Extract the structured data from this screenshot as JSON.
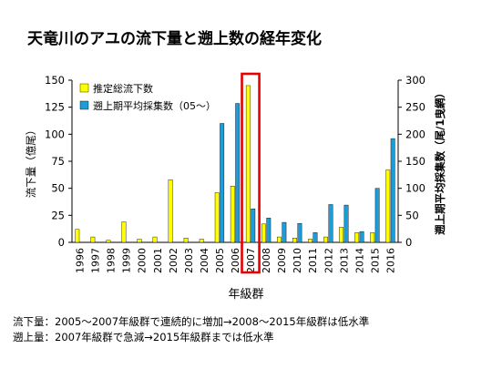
{
  "slide": {
    "title": "天竜川のアユの流下量と遡上数の経年変化",
    "notes": [
      "流下量：2005〜2007年級群で連続的に増加→2008〜2015年級群は低水準",
      "遡上量：2007年級群で急減→2015年級群までは低水準"
    ]
  },
  "colors": {
    "flow": "#ffff00",
    "catch": "#1e9cd7",
    "highlight": "#e60000",
    "axis": "#000000"
  },
  "chart_data": {
    "type": "bar",
    "categories": [
      "1996",
      "1997",
      "1998",
      "1999",
      "2000",
      "2001",
      "2002",
      "2003",
      "2004",
      "2005",
      "2006",
      "2007",
      "2008",
      "2009",
      "2010",
      "2011",
      "2012",
      "2013",
      "2014",
      "2015",
      "2016"
    ],
    "xlabel": "年級群",
    "ylabel_left": "流下量（億尾）",
    "ylabel_right": "遡上期平均採集数（尾/1曳網）",
    "ylim_left": [
      0,
      150
    ],
    "yticks_left": [
      0,
      25,
      50,
      75,
      100,
      125,
      150
    ],
    "ylim_right": [
      0,
      300
    ],
    "yticks_right": [
      0,
      50,
      100,
      150,
      200,
      250,
      300
    ],
    "legend_position": "top-left",
    "highlight_category": "2007",
    "series": [
      {
        "name": "推定総流下数",
        "axis": "left",
        "color_key": "flow",
        "values": [
          12,
          5,
          2,
          19,
          3,
          5,
          58,
          4,
          3,
          46,
          52,
          145,
          17,
          5,
          4,
          3,
          5,
          14,
          9,
          9,
          67
        ]
      },
      {
        "name": "遡上期平均採集数（05〜）",
        "axis": "right",
        "color_key": "catch",
        "values": [
          null,
          null,
          null,
          null,
          null,
          null,
          null,
          null,
          null,
          220,
          257,
          62,
          45,
          37,
          35,
          18,
          70,
          69,
          20,
          100,
          192
        ]
      }
    ]
  }
}
